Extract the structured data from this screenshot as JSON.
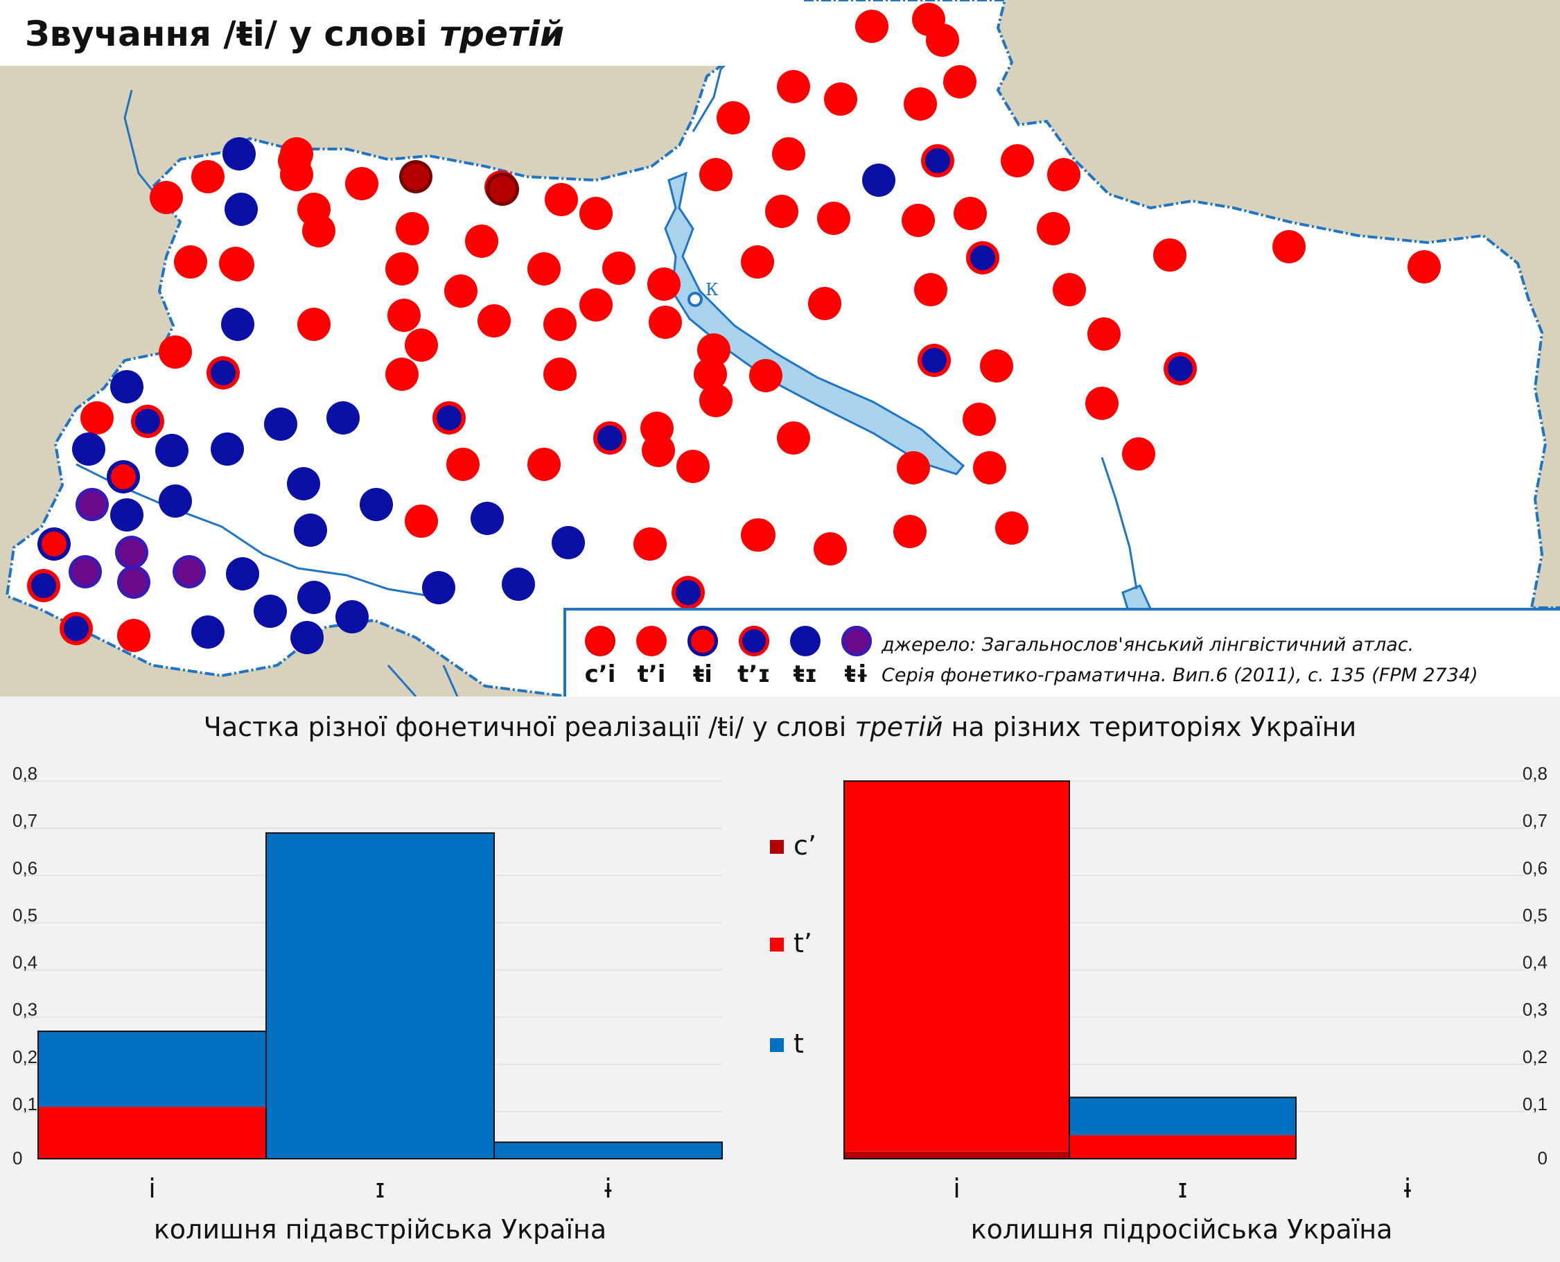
{
  "map": {
    "title_prefix": "Звучання /ŧi/ у слові ",
    "title_word": "третій",
    "city_label": "К",
    "colors": {
      "land": "#ffffff",
      "outside": "#d8d2bc",
      "border": "#1f74c4",
      "water": "#a9d2ec",
      "red": "#ff0000",
      "blue": "#0a0fa5",
      "dark_red": "#b50000",
      "purple": "#6b0a8a"
    }
  },
  "legend": {
    "items": [
      {
        "label": "c’i",
        "style": "dark-red"
      },
      {
        "label": "t’i",
        "style": "red"
      },
      {
        "label": "ŧi",
        "style": "red-ring-blue"
      },
      {
        "label": "t’ɪ",
        "style": "blue-ring-red"
      },
      {
        "label": "ŧɪ",
        "style": "blue"
      },
      {
        "label": "ŧɨ",
        "style": "purple"
      }
    ],
    "source_line1": "джерело: Загальнослов'янський лінгвістичний атлас.",
    "source_line2": "Серія фонетико-граматична. Вип.6 (2011), с. 135 (FPM 2734)"
  },
  "chart_panel": {
    "title_prefix": "Частка різної фонетичної реалізації /ŧi/ у слові ",
    "title_word": "третій",
    "title_suffix": " на різних територіях України"
  },
  "chart_data": [
    {
      "type": "bar",
      "stacked": true,
      "categories": [
        "і",
        "ɪ",
        "ɨ"
      ],
      "xlabel": "колишня підавстрійська Україна",
      "ylabel": "",
      "ylim": [
        0,
        0.8
      ],
      "yticks": [
        "0",
        "0,1",
        "0,2",
        "0,3",
        "0,4",
        "0,5",
        "0,6",
        "0,7",
        "0,8"
      ],
      "y_axis_side": "left",
      "grid": true,
      "series": [
        {
          "name": "c’",
          "color": "#b30000",
          "values": [
            0,
            0,
            0
          ]
        },
        {
          "name": "t’",
          "color": "#ff0000",
          "values": [
            0.11,
            0,
            0
          ]
        },
        {
          "name": "t",
          "color": "#0070c0",
          "values": [
            0.16,
            0.69,
            0.035
          ]
        }
      ]
    },
    {
      "type": "bar",
      "stacked": true,
      "categories": [
        "і",
        "ɪ",
        "ɨ"
      ],
      "xlabel": "колишня підросійська Україна",
      "ylabel": "",
      "ylim": [
        0,
        0.8
      ],
      "yticks": [
        "0",
        "0,1",
        "0,2",
        "0,3",
        "0,4",
        "0,5",
        "0,6",
        "0,7",
        "0,8"
      ],
      "y_axis_side": "right",
      "grid": true,
      "series": [
        {
          "name": "c’",
          "color": "#b30000",
          "values": [
            0.015,
            0,
            0
          ]
        },
        {
          "name": "t’",
          "color": "#ff0000",
          "values": [
            0.785,
            0.05,
            0
          ]
        },
        {
          "name": "t",
          "color": "#0070c0",
          "values": [
            0,
            0.08,
            0
          ]
        }
      ]
    }
  ]
}
